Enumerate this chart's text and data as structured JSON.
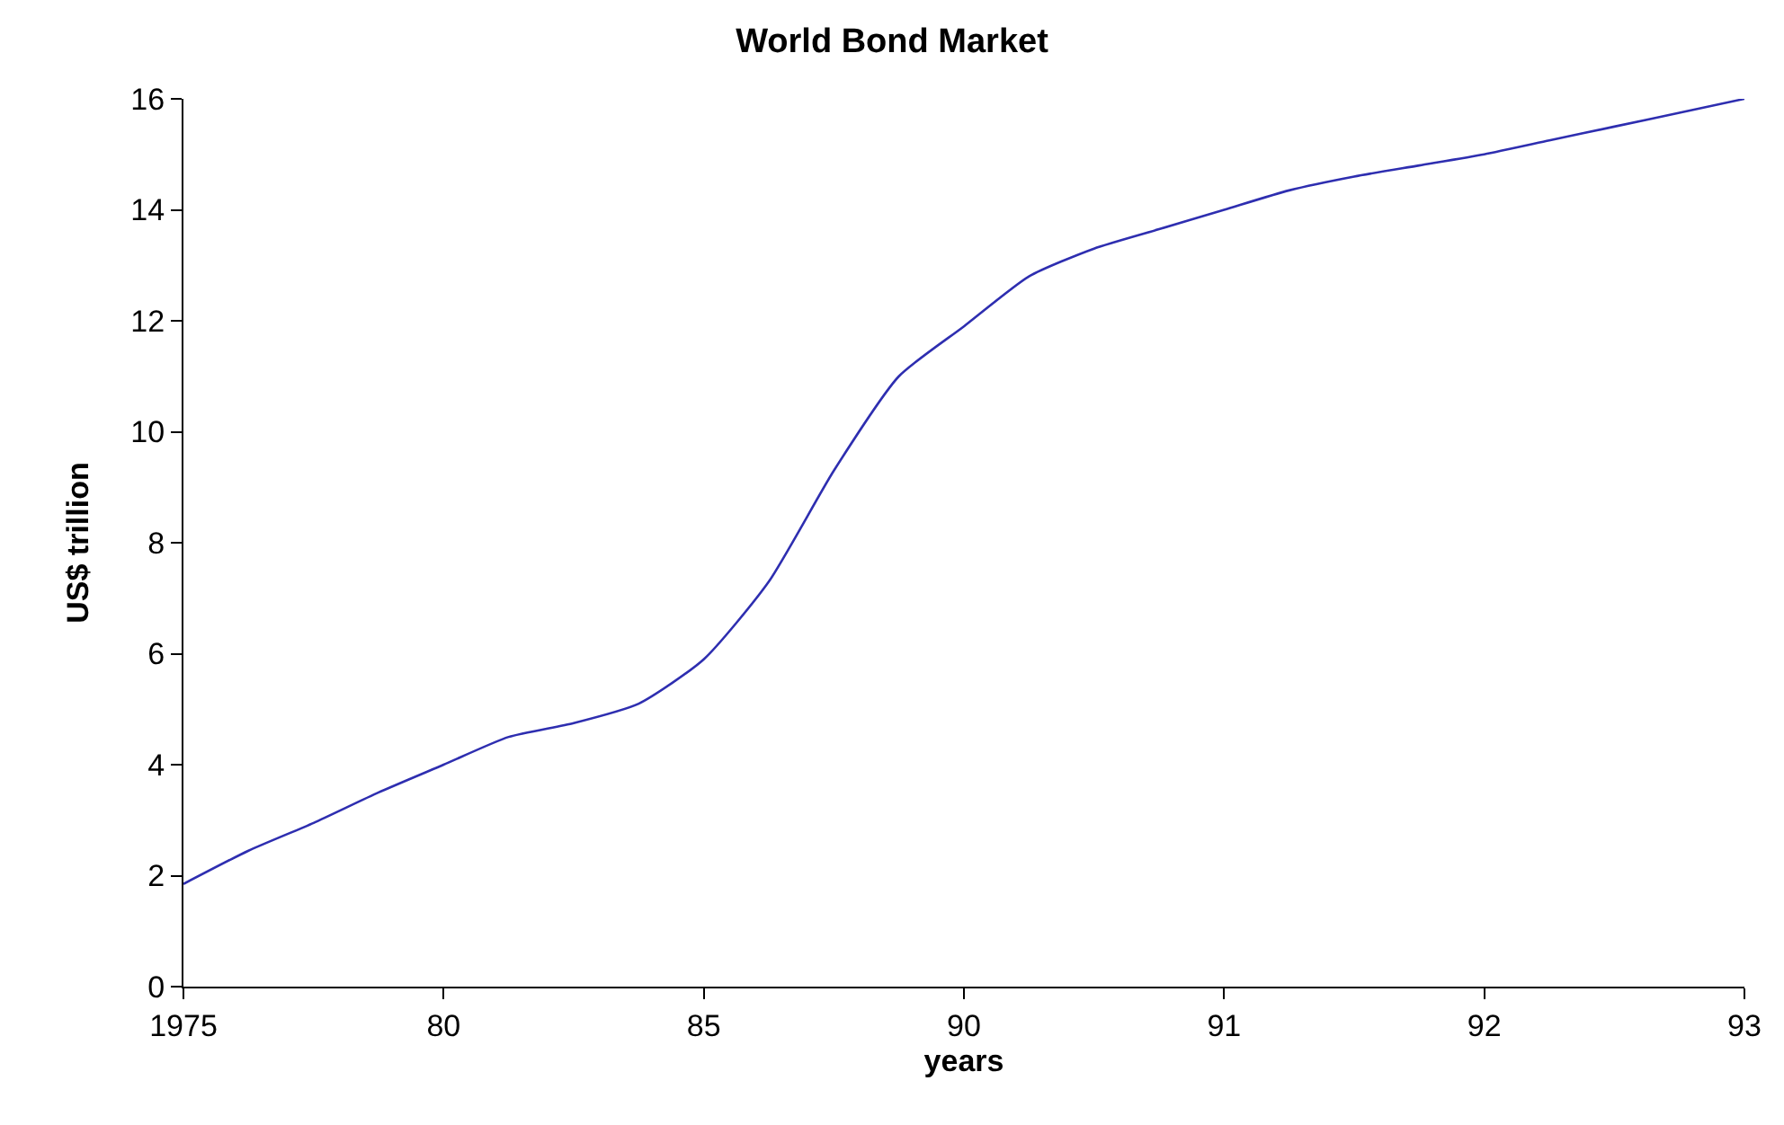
{
  "chart_data": {
    "type": "line",
    "title": "World Bond Market",
    "xlabel": "years",
    "ylabel": "US$ trillion",
    "categories": [
      "1975",
      null,
      null,
      null,
      "80",
      null,
      null,
      null,
      "85",
      null,
      null,
      null,
      "90",
      null,
      null,
      null,
      "91",
      null,
      null,
      null,
      "92",
      null,
      null,
      null,
      "93"
    ],
    "series": [
      {
        "color": "#2e2eb0",
        "values": [
          1.85,
          2.45,
          2.95,
          3.5,
          4.0,
          4.5,
          4.75,
          5.1,
          5.9,
          7.3,
          9.3,
          11.0,
          11.9,
          12.8,
          13.3,
          13.65,
          14.0,
          14.35,
          14.6,
          14.8,
          15.0,
          15.25,
          15.5,
          15.75,
          16.0
        ]
      }
    ],
    "ylim": [
      0,
      16
    ],
    "yticks": [
      0,
      2,
      4,
      6,
      8,
      10,
      12,
      14,
      16
    ],
    "grid": false,
    "marker": "none",
    "line_style": "solid"
  }
}
